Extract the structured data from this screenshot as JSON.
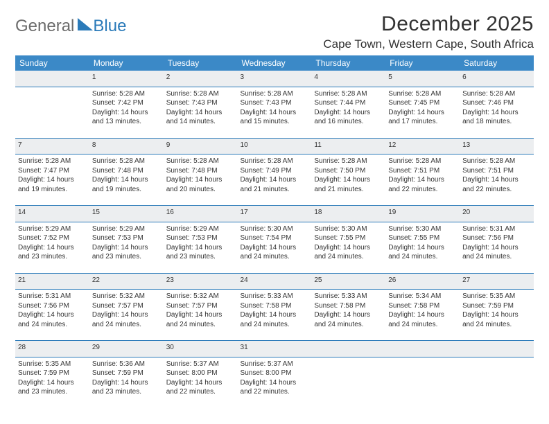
{
  "logo": {
    "general": "General",
    "blue": "Blue"
  },
  "title": "December 2025",
  "location": "Cape Town, Western Cape, South Africa",
  "colors": {
    "header_bg": "#3b89c7",
    "header_text": "#ffffff",
    "rule": "#2a7ab9",
    "daynum_bg": "#eceef0",
    "daynum_text": "#5a5f63",
    "body_text": "#333333",
    "logo_gray": "#6b6b6b",
    "logo_blue": "#2a7ab9",
    "page_bg": "#ffffff"
  },
  "weekdays": [
    "Sunday",
    "Monday",
    "Tuesday",
    "Wednesday",
    "Thursday",
    "Friday",
    "Saturday"
  ],
  "weeks": [
    {
      "nums": [
        "",
        "1",
        "2",
        "3",
        "4",
        "5",
        "6"
      ],
      "cells": [
        {
          "sunrise": "",
          "sunset": "",
          "daylight1": "",
          "daylight2": ""
        },
        {
          "sunrise": "Sunrise: 5:28 AM",
          "sunset": "Sunset: 7:42 PM",
          "daylight1": "Daylight: 14 hours",
          "daylight2": "and 13 minutes."
        },
        {
          "sunrise": "Sunrise: 5:28 AM",
          "sunset": "Sunset: 7:43 PM",
          "daylight1": "Daylight: 14 hours",
          "daylight2": "and 14 minutes."
        },
        {
          "sunrise": "Sunrise: 5:28 AM",
          "sunset": "Sunset: 7:43 PM",
          "daylight1": "Daylight: 14 hours",
          "daylight2": "and 15 minutes."
        },
        {
          "sunrise": "Sunrise: 5:28 AM",
          "sunset": "Sunset: 7:44 PM",
          "daylight1": "Daylight: 14 hours",
          "daylight2": "and 16 minutes."
        },
        {
          "sunrise": "Sunrise: 5:28 AM",
          "sunset": "Sunset: 7:45 PM",
          "daylight1": "Daylight: 14 hours",
          "daylight2": "and 17 minutes."
        },
        {
          "sunrise": "Sunrise: 5:28 AM",
          "sunset": "Sunset: 7:46 PM",
          "daylight1": "Daylight: 14 hours",
          "daylight2": "and 18 minutes."
        }
      ]
    },
    {
      "nums": [
        "7",
        "8",
        "9",
        "10",
        "11",
        "12",
        "13"
      ],
      "cells": [
        {
          "sunrise": "Sunrise: 5:28 AM",
          "sunset": "Sunset: 7:47 PM",
          "daylight1": "Daylight: 14 hours",
          "daylight2": "and 19 minutes."
        },
        {
          "sunrise": "Sunrise: 5:28 AM",
          "sunset": "Sunset: 7:48 PM",
          "daylight1": "Daylight: 14 hours",
          "daylight2": "and 19 minutes."
        },
        {
          "sunrise": "Sunrise: 5:28 AM",
          "sunset": "Sunset: 7:48 PM",
          "daylight1": "Daylight: 14 hours",
          "daylight2": "and 20 minutes."
        },
        {
          "sunrise": "Sunrise: 5:28 AM",
          "sunset": "Sunset: 7:49 PM",
          "daylight1": "Daylight: 14 hours",
          "daylight2": "and 21 minutes."
        },
        {
          "sunrise": "Sunrise: 5:28 AM",
          "sunset": "Sunset: 7:50 PM",
          "daylight1": "Daylight: 14 hours",
          "daylight2": "and 21 minutes."
        },
        {
          "sunrise": "Sunrise: 5:28 AM",
          "sunset": "Sunset: 7:51 PM",
          "daylight1": "Daylight: 14 hours",
          "daylight2": "and 22 minutes."
        },
        {
          "sunrise": "Sunrise: 5:28 AM",
          "sunset": "Sunset: 7:51 PM",
          "daylight1": "Daylight: 14 hours",
          "daylight2": "and 22 minutes."
        }
      ]
    },
    {
      "nums": [
        "14",
        "15",
        "16",
        "17",
        "18",
        "19",
        "20"
      ],
      "cells": [
        {
          "sunrise": "Sunrise: 5:29 AM",
          "sunset": "Sunset: 7:52 PM",
          "daylight1": "Daylight: 14 hours",
          "daylight2": "and 23 minutes."
        },
        {
          "sunrise": "Sunrise: 5:29 AM",
          "sunset": "Sunset: 7:53 PM",
          "daylight1": "Daylight: 14 hours",
          "daylight2": "and 23 minutes."
        },
        {
          "sunrise": "Sunrise: 5:29 AM",
          "sunset": "Sunset: 7:53 PM",
          "daylight1": "Daylight: 14 hours",
          "daylight2": "and 23 minutes."
        },
        {
          "sunrise": "Sunrise: 5:30 AM",
          "sunset": "Sunset: 7:54 PM",
          "daylight1": "Daylight: 14 hours",
          "daylight2": "and 24 minutes."
        },
        {
          "sunrise": "Sunrise: 5:30 AM",
          "sunset": "Sunset: 7:55 PM",
          "daylight1": "Daylight: 14 hours",
          "daylight2": "and 24 minutes."
        },
        {
          "sunrise": "Sunrise: 5:30 AM",
          "sunset": "Sunset: 7:55 PM",
          "daylight1": "Daylight: 14 hours",
          "daylight2": "and 24 minutes."
        },
        {
          "sunrise": "Sunrise: 5:31 AM",
          "sunset": "Sunset: 7:56 PM",
          "daylight1": "Daylight: 14 hours",
          "daylight2": "and 24 minutes."
        }
      ]
    },
    {
      "nums": [
        "21",
        "22",
        "23",
        "24",
        "25",
        "26",
        "27"
      ],
      "cells": [
        {
          "sunrise": "Sunrise: 5:31 AM",
          "sunset": "Sunset: 7:56 PM",
          "daylight1": "Daylight: 14 hours",
          "daylight2": "and 24 minutes."
        },
        {
          "sunrise": "Sunrise: 5:32 AM",
          "sunset": "Sunset: 7:57 PM",
          "daylight1": "Daylight: 14 hours",
          "daylight2": "and 24 minutes."
        },
        {
          "sunrise": "Sunrise: 5:32 AM",
          "sunset": "Sunset: 7:57 PM",
          "daylight1": "Daylight: 14 hours",
          "daylight2": "and 24 minutes."
        },
        {
          "sunrise": "Sunrise: 5:33 AM",
          "sunset": "Sunset: 7:58 PM",
          "daylight1": "Daylight: 14 hours",
          "daylight2": "and 24 minutes."
        },
        {
          "sunrise": "Sunrise: 5:33 AM",
          "sunset": "Sunset: 7:58 PM",
          "daylight1": "Daylight: 14 hours",
          "daylight2": "and 24 minutes."
        },
        {
          "sunrise": "Sunrise: 5:34 AM",
          "sunset": "Sunset: 7:58 PM",
          "daylight1": "Daylight: 14 hours",
          "daylight2": "and 24 minutes."
        },
        {
          "sunrise": "Sunrise: 5:35 AM",
          "sunset": "Sunset: 7:59 PM",
          "daylight1": "Daylight: 14 hours",
          "daylight2": "and 24 minutes."
        }
      ]
    },
    {
      "nums": [
        "28",
        "29",
        "30",
        "31",
        "",
        "",
        ""
      ],
      "cells": [
        {
          "sunrise": "Sunrise: 5:35 AM",
          "sunset": "Sunset: 7:59 PM",
          "daylight1": "Daylight: 14 hours",
          "daylight2": "and 23 minutes."
        },
        {
          "sunrise": "Sunrise: 5:36 AM",
          "sunset": "Sunset: 7:59 PM",
          "daylight1": "Daylight: 14 hours",
          "daylight2": "and 23 minutes."
        },
        {
          "sunrise": "Sunrise: 5:37 AM",
          "sunset": "Sunset: 8:00 PM",
          "daylight1": "Daylight: 14 hours",
          "daylight2": "and 22 minutes."
        },
        {
          "sunrise": "Sunrise: 5:37 AM",
          "sunset": "Sunset: 8:00 PM",
          "daylight1": "Daylight: 14 hours",
          "daylight2": "and 22 minutes."
        },
        {
          "sunrise": "",
          "sunset": "",
          "daylight1": "",
          "daylight2": ""
        },
        {
          "sunrise": "",
          "sunset": "",
          "daylight1": "",
          "daylight2": ""
        },
        {
          "sunrise": "",
          "sunset": "",
          "daylight1": "",
          "daylight2": ""
        }
      ]
    }
  ]
}
